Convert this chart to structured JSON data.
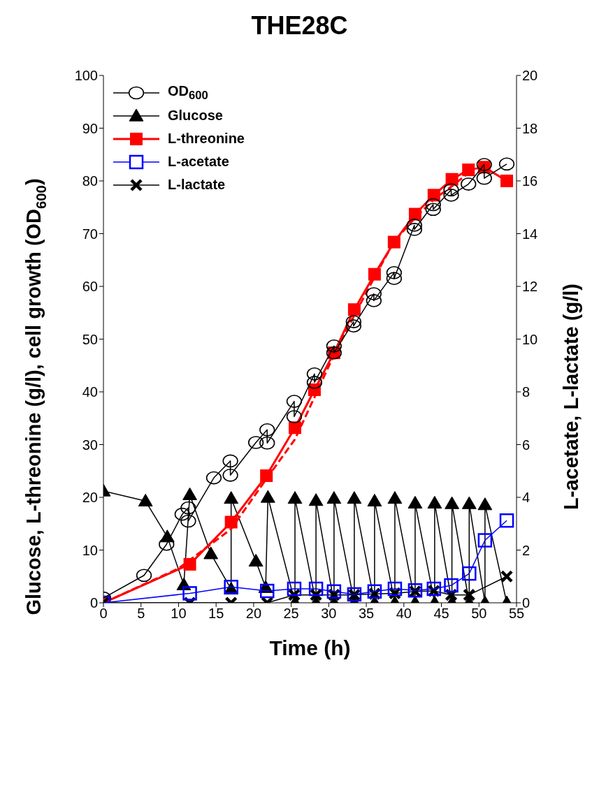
{
  "chart_data": {
    "type": "line",
    "title": "THE28C",
    "xlabel": "Time (h)",
    "ylabel": "Glucose, L-threonine (g/l), cell growth (OD$_{600}$)",
    "y2label": "L-acetate, L-lactate (g/l)",
    "xlim": [
      0,
      55
    ],
    "xticks": [
      0,
      5,
      10,
      15,
      20,
      25,
      30,
      35,
      40,
      45,
      50,
      55
    ],
    "ylim": [
      0,
      100
    ],
    "yticks": [
      0,
      10,
      20,
      30,
      40,
      50,
      60,
      70,
      80,
      90,
      100
    ],
    "y2lim": [
      0,
      20
    ],
    "y2ticks": [
      0,
      2,
      4,
      6,
      8,
      10,
      12,
      14,
      16,
      18,
      20
    ],
    "legend": "top left",
    "grid": false,
    "series": [
      {
        "name": "OD$_{600}$",
        "color": "#000000",
        "marker": "circle",
        "x": [
          0,
          5.4,
          8.4,
          10.5,
          11.3,
          11.3,
          14.7,
          16.9,
          16.9,
          20.3,
          21.8,
          21.8,
          25.4,
          25.4,
          28.1,
          28.1,
          30.7,
          30.7,
          33.3,
          33.3,
          36.0,
          36.0,
          38.7,
          38.7,
          41.4,
          41.4,
          43.9,
          43.9,
          46.3,
          46.3,
          48.6,
          50.7,
          50.7,
          53.7
        ],
        "values": [
          0.9,
          5.2,
          11.1,
          16.8,
          18.0,
          15.5,
          23.7,
          26.9,
          24.2,
          30.4,
          32.8,
          30.3,
          38.2,
          35.3,
          43.4,
          41.8,
          48.7,
          47.4,
          53.3,
          52.5,
          58.6,
          57.3,
          62.6,
          61.5,
          71.6,
          70.8,
          75.5,
          74.6,
          78.3,
          77.3,
          79.4,
          83.1,
          80.5,
          83.2
        ]
      },
      {
        "name": "Glucose",
        "color": "#000000",
        "marker": "triangle",
        "x": [
          0,
          5.6,
          8.5,
          10.7,
          11.5,
          14.3,
          17.0,
          17.0,
          20.3,
          21.6,
          21.9,
          25.5,
          25.5,
          28.3,
          28.3,
          30.7,
          30.7,
          33.4,
          33.4,
          36.1,
          36.1,
          38.8,
          38.8,
          41.5,
          41.5,
          44.1,
          44.1,
          46.4,
          46.4,
          48.7,
          48.7,
          50.8,
          50.8,
          53.7
        ],
        "values": [
          21.2,
          19.3,
          12.5,
          3.4,
          20.5,
          9.3,
          2.6,
          19.8,
          7.9,
          2.9,
          20.0,
          0,
          19.8,
          0,
          19.4,
          0,
          19.8,
          0,
          19.8,
          0,
          19.3,
          0,
          19.8,
          0,
          18.9,
          0,
          18.9,
          0,
          18.8,
          0,
          18.8,
          0,
          18.6,
          0
        ]
      },
      {
        "name": "L-threonine",
        "color": "#ff0000",
        "marker": "square",
        "x": [
          0,
          11.5,
          17.0,
          21.7,
          25.5,
          28.1,
          30.7,
          33.4,
          36.1,
          38.7,
          41.5,
          44.0,
          46.4,
          48.6,
          50.7,
          53.7
        ],
        "values": [
          0,
          7.3,
          15.3,
          24.1,
          33.2,
          40.4,
          47.4,
          55.6,
          62.3,
          68.4,
          73.7,
          77.3,
          80.3,
          82.1,
          82.6,
          80.0
        ]
      },
      {
        "color": "#ff0000",
        "marker": "none",
        "line_style": "dashed",
        "x": [
          0,
          10,
          17,
          21.7,
          25.5,
          28.1,
          30.7,
          33.4,
          36,
          38.7,
          41.5,
          44,
          46.4,
          48.6
        ],
        "values": [
          0,
          6.5,
          14,
          23.5,
          31,
          39,
          47,
          54.5,
          61.5,
          68.5,
          73,
          76.5,
          79,
          81.5
        ]
      },
      {
        "name": "L-acetate",
        "color": "#0000ff",
        "marker": "square",
        "axis": "y2",
        "x": [
          0,
          11.5,
          17.0,
          21.8,
          25.4,
          28.3,
          30.7,
          33.4,
          36.1,
          38.8,
          41.5,
          44.0,
          46.3,
          48.7,
          50.8,
          53.7
        ],
        "values": [
          0,
          0.36,
          0.6,
          0.45,
          0.53,
          0.53,
          0.43,
          0.32,
          0.43,
          0.53,
          0.47,
          0.53,
          0.66,
          1.11,
          2.37,
          3.12
        ]
      },
      {
        "name": "L-lactate",
        "color": "#000000",
        "marker": "cross",
        "axis": "y2",
        "x": [
          0,
          11.5,
          17.0,
          21.8,
          25.4,
          28.3,
          30.7,
          33.4,
          36.1,
          38.8,
          41.5,
          44.0,
          46.3,
          48.7,
          53.7
        ],
        "values": [
          0,
          0,
          0,
          0,
          0.3,
          0.3,
          0.3,
          0.3,
          0.34,
          0.36,
          0.43,
          0.45,
          0.3,
          0.3,
          1.0
        ]
      }
    ]
  }
}
